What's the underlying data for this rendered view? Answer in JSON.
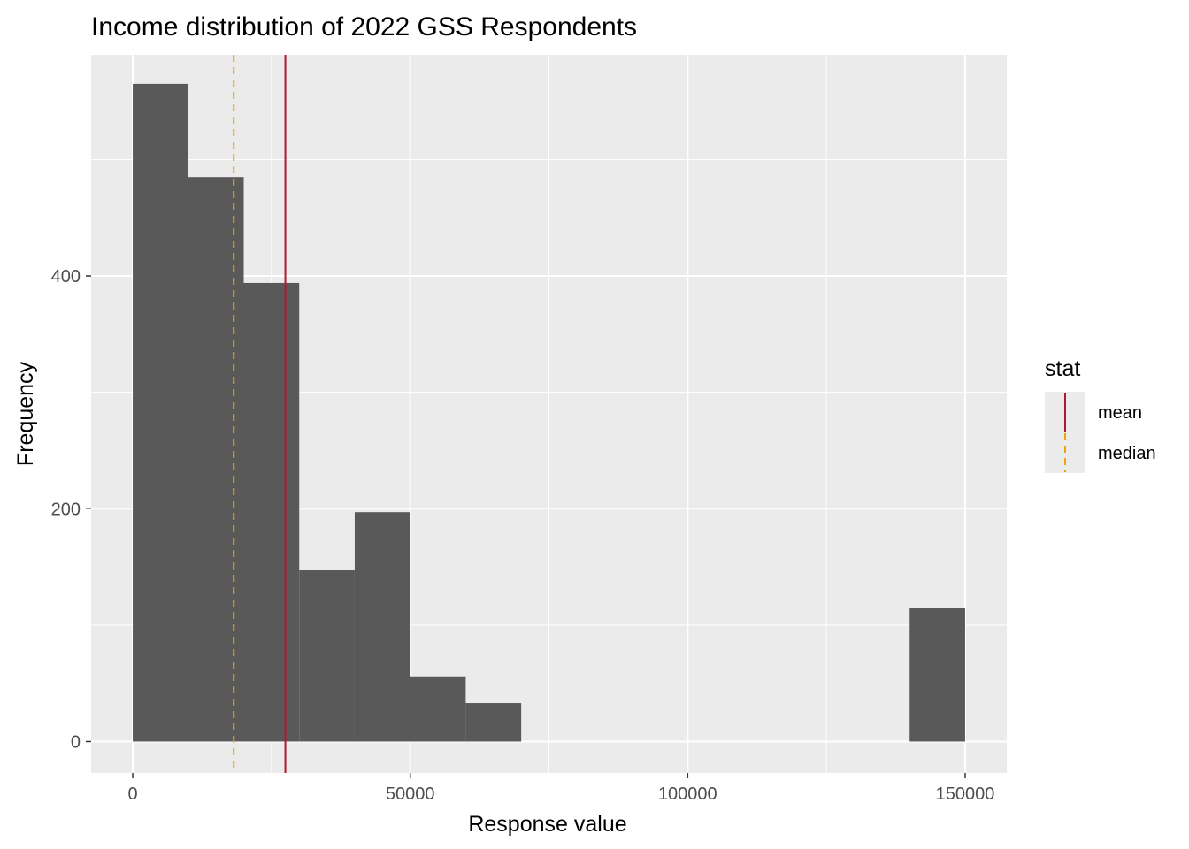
{
  "chart_data": {
    "type": "bar",
    "subtype": "histogram",
    "title": "Income distribution of 2022 GSS Respondents",
    "xlabel": "Response value",
    "ylabel": "Frequency",
    "xlim": [
      -7500,
      157500
    ],
    "ylim": [
      -27,
      590
    ],
    "x_ticks": [
      0,
      50000,
      100000,
      150000
    ],
    "x_tick_labels": [
      "0",
      "50000",
      "100000",
      "150000"
    ],
    "x_minor_ticks": [
      25000,
      75000,
      125000
    ],
    "y_ticks": [
      0,
      200,
      400
    ],
    "y_tick_labels": [
      "0",
      "200",
      "400"
    ],
    "y_minor_ticks": [
      100,
      300,
      500
    ],
    "bins": [
      {
        "x0": 0,
        "x1": 10000,
        "count": 565
      },
      {
        "x0": 10000,
        "x1": 20000,
        "count": 485
      },
      {
        "x0": 20000,
        "x1": 30000,
        "count": 394
      },
      {
        "x0": 30000,
        "x1": 40000,
        "count": 147
      },
      {
        "x0": 40000,
        "x1": 50000,
        "count": 197
      },
      {
        "x0": 50000,
        "x1": 60000,
        "count": 56
      },
      {
        "x0": 60000,
        "x1": 70000,
        "count": 33
      },
      {
        "x0": 140000,
        "x1": 150000,
        "count": 115
      }
    ],
    "bar_color": "#595959",
    "panel_color": "#ebebeb",
    "grid": true,
    "reference_lines": [
      {
        "stat": "mean",
        "x": 27500,
        "color": "#b2182b",
        "linetype": "solid"
      },
      {
        "stat": "median",
        "x": 18200,
        "color": "#f0a30a",
        "linetype": "dashed"
      }
    ],
    "legend": {
      "title": "stat",
      "position": "right",
      "entries": [
        "mean",
        "median"
      ]
    }
  }
}
